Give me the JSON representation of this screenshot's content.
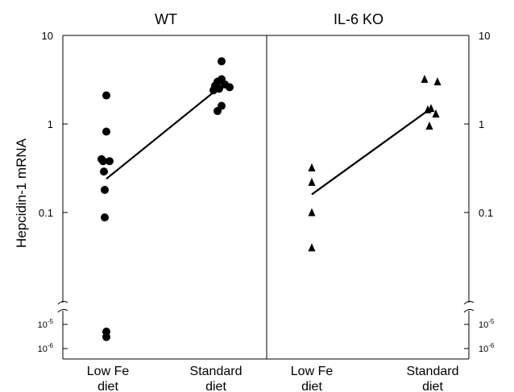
{
  "chart_data": [
    {
      "type": "scatter",
      "panel": "WT",
      "title": "WT",
      "ylabel": "Hepcidin-1 mRNA",
      "yscale": "log",
      "ylim": [
        0.01,
        10
      ],
      "y_break": true,
      "break_ticks": [
        {
          "base": "10",
          "exp": "-5",
          "value": 1e-05
        },
        {
          "base": "10",
          "exp": "-6",
          "value": 1e-06
        }
      ],
      "yticks": [
        "10",
        "1",
        "0.1"
      ],
      "ytick_values": [
        10,
        1,
        0.1
      ],
      "categories": [
        "Low Fe diet",
        "Standard diet"
      ],
      "category_lines": [
        [
          "Low Fe",
          "diet"
        ],
        [
          "Standard",
          "diet"
        ]
      ],
      "marker": "circle",
      "series": [
        {
          "category": "Low Fe diet",
          "values": [
            2.1,
            0.82,
            0.4,
            0.38,
            0.38,
            0.29,
            0.18,
            0.088,
            5e-06,
            3e-06
          ]
        },
        {
          "category": "Standard diet",
          "values": [
            5.1,
            3.2,
            3.0,
            2.8,
            2.7,
            2.6,
            2.5,
            2.4,
            1.6,
            1.4
          ]
        }
      ],
      "trend": {
        "from": 0.24,
        "to": 2.7
      }
    },
    {
      "type": "scatter",
      "panel": "IL-6 KO",
      "title": "IL-6 KO",
      "yscale": "log",
      "ylim": [
        0.01,
        10
      ],
      "y_break": true,
      "break_ticks": [
        {
          "base": "10",
          "exp": "-5",
          "value": 1e-05
        },
        {
          "base": "10",
          "exp": "-6",
          "value": 1e-06
        }
      ],
      "yticks": [
        "10",
        "1",
        "0.1"
      ],
      "ytick_values": [
        10,
        1,
        0.1
      ],
      "categories": [
        "Low Fe diet",
        "Standard diet"
      ],
      "category_lines": [
        [
          "Low Fe",
          "diet"
        ],
        [
          "Standard",
          "diet"
        ]
      ],
      "marker": "triangle",
      "series": [
        {
          "category": "Low Fe diet",
          "values": [
            0.32,
            0.22,
            0.1,
            0.04
          ]
        },
        {
          "category": "Standard diet",
          "values": [
            3.2,
            3.0,
            1.5,
            1.45,
            1.3,
            0.95
          ]
        }
      ],
      "trend": {
        "from": 0.16,
        "to": 1.5
      }
    }
  ]
}
